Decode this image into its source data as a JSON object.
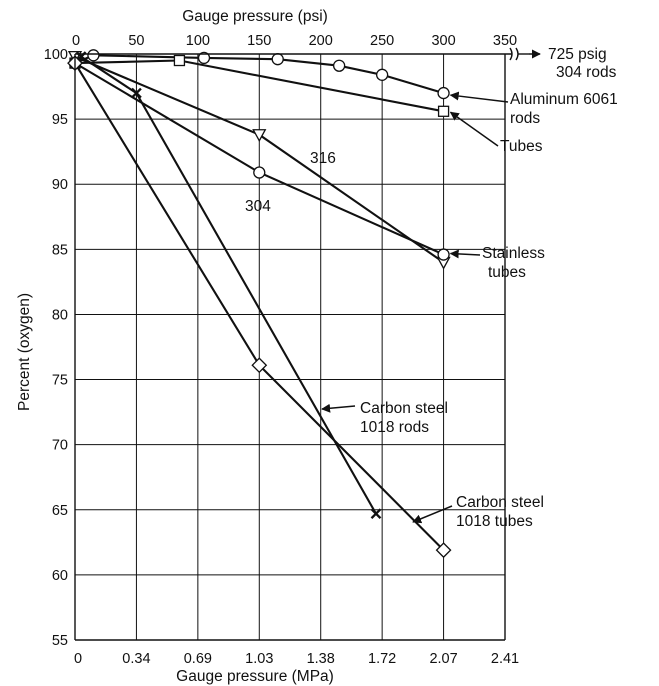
{
  "chart_data": {
    "type": "line",
    "title": "",
    "xlabel_top": "Gauge pressure (psi)",
    "xlabel_bottom": "Gauge pressure (MPa)",
    "ylabel": "Percent (oxygen)",
    "ylim": [
      55,
      100
    ],
    "xlim_psi": [
      0,
      350
    ],
    "top_ticks": [
      "0",
      "50",
      "100",
      "150",
      "200",
      "250",
      "300",
      "350"
    ],
    "bottom_ticks": [
      "0",
      "0.34",
      "0.69",
      "1.03",
      "1.38",
      "1.72",
      "2.07",
      "2.41"
    ],
    "y_ticks": [
      "55",
      "60",
      "65",
      "70",
      "75",
      "80",
      "85",
      "90",
      "95",
      "100"
    ],
    "grid": true,
    "axis_break_label": "725 psig\n304 rods",
    "series": [
      {
        "name": "Aluminum 6061 rods",
        "marker": "circle",
        "x": [
          0,
          15,
          105,
          165,
          215,
          250,
          300
        ],
        "y": [
          99.3,
          99.9,
          99.7,
          99.6,
          99.1,
          98.4,
          97.0
        ]
      },
      {
        "name": "Tubes",
        "marker": "square",
        "x": [
          0,
          85,
          300
        ],
        "y": [
          99.3,
          99.5,
          95.6
        ]
      },
      {
        "name": "316",
        "marker": "triangle-down",
        "x": [
          0,
          150,
          300
        ],
        "y": [
          99.8,
          93.8,
          84.0
        ]
      },
      {
        "name": "304",
        "marker": "circle",
        "x": [
          0,
          150,
          300
        ],
        "y": [
          99.3,
          90.9,
          84.6
        ]
      },
      {
        "name": "Carbon steel 1018 rods",
        "marker": "x",
        "x": [
          5,
          50,
          245
        ],
        "y": [
          99.8,
          97.0,
          64.7
        ]
      },
      {
        "name": "Carbon steel 1018 tubes",
        "marker": "diamond",
        "x": [
          0,
          150,
          300
        ],
        "y": [
          99.3,
          76.1,
          61.9
        ]
      }
    ],
    "annotations": [
      {
        "text": "Aluminum 6061\nrods",
        "points_to": "Aluminum 6061 rods"
      },
      {
        "text": "Tubes",
        "points_to": "Tubes"
      },
      {
        "text": "316",
        "points_to": "316"
      },
      {
        "text": "304",
        "points_to": "304"
      },
      {
        "text": "Stainless\ntubes",
        "points_to": "316 / 304"
      },
      {
        "text": "Carbon steel\n1018 rods",
        "points_to": "Carbon steel 1018 rods"
      },
      {
        "text": "Carbon steel\n1018 tubes",
        "points_to": "Carbon steel 1018 tubes"
      }
    ]
  }
}
